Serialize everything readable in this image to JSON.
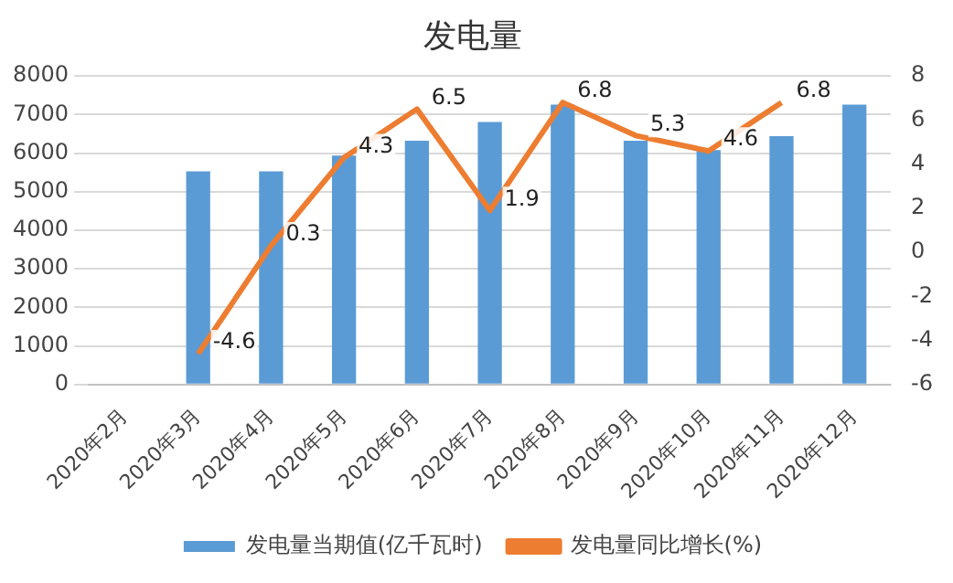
{
  "chart_data": {
    "type": "bar",
    "title": "发电量",
    "categories": [
      "2020年2月",
      "2020年3月",
      "2020年4月",
      "2020年5月",
      "2020年6月",
      "2020年7月",
      "2020年8月",
      "2020年9月",
      "2020年10月",
      "2020年11月",
      "2020年12月"
    ],
    "series": [
      {
        "name": "发电量当期值(亿千瓦时)",
        "color": "#5b9bd5",
        "values": [
          null,
          5530,
          5530,
          5940,
          6320,
          6810,
          7260,
          6320,
          6080,
          6440,
          7260
        ]
      },
      {
        "name": "发电量同比增长(%)",
        "type": "line",
        "axis": "y2",
        "color": "#ed7d31",
        "values": [
          null,
          -4.6,
          0.3,
          4.3,
          6.5,
          1.9,
          6.8,
          5.3,
          4.6,
          6.8,
          null
        ],
        "value_labels": [
          null,
          "-4.6",
          "0.3",
          "4.3",
          "6.5",
          "1.9",
          "6.8",
          "5.3",
          "4.6",
          "6.8",
          null
        ]
      }
    ],
    "ylim": [
      0,
      8000
    ],
    "yticks": [
      0,
      1000,
      2000,
      3000,
      4000,
      5000,
      6000,
      7000,
      8000
    ],
    "y2lim": [
      -6,
      8
    ],
    "y2ticks": [
      -6,
      -4,
      -2,
      0,
      2,
      4,
      6,
      8
    ],
    "grid": "y",
    "legend": "bottom",
    "marker": "none",
    "line_style": "solid"
  }
}
